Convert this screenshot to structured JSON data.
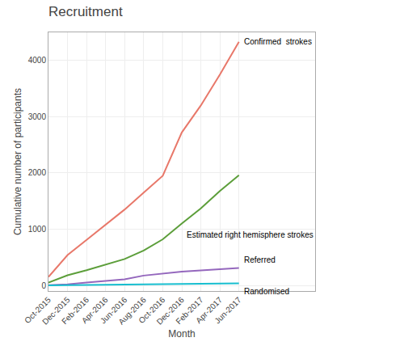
{
  "chart_data": {
    "type": "line",
    "title": "Recruitment",
    "x_label": "Month",
    "y_label": "Cumulative number of participants",
    "categories": [
      "Oct-2015",
      "Dec-2015",
      "Feb-2016",
      "Apr-2016",
      "Jun-2016",
      "Aug-2016",
      "Oct-2016",
      "Dec-2016",
      "Feb-2017",
      "Apr-2017",
      "Jun-2017"
    ],
    "series": [
      {
        "name": "Confirmed  strokes",
        "color": "#E8786A",
        "values": [
          150,
          540,
          810,
          1080,
          1350,
          1650,
          1950,
          2720,
          3200,
          3750,
          4330
        ]
      },
      {
        "name": "Estimated right hemisphere strokes",
        "color": "#5C9E3A",
        "values": [
          50,
          180,
          270,
          370,
          470,
          620,
          820,
          1100,
          1370,
          1680,
          1960
        ]
      },
      {
        "name": "Referred",
        "color": "#9467BD",
        "values": [
          5,
          20,
          50,
          80,
          110,
          175,
          215,
          245,
          265,
          285,
          310
        ]
      },
      {
        "name": "Randomised",
        "color": "#17BECF",
        "values": [
          2,
          5,
          8,
          10,
          12,
          15,
          18,
          22,
          26,
          30,
          35
        ]
      }
    ],
    "ylim": [
      -100,
      4500
    ],
    "yticks": [
      0,
      1000,
      2000,
      3000,
      4000
    ],
    "grid": true
  }
}
